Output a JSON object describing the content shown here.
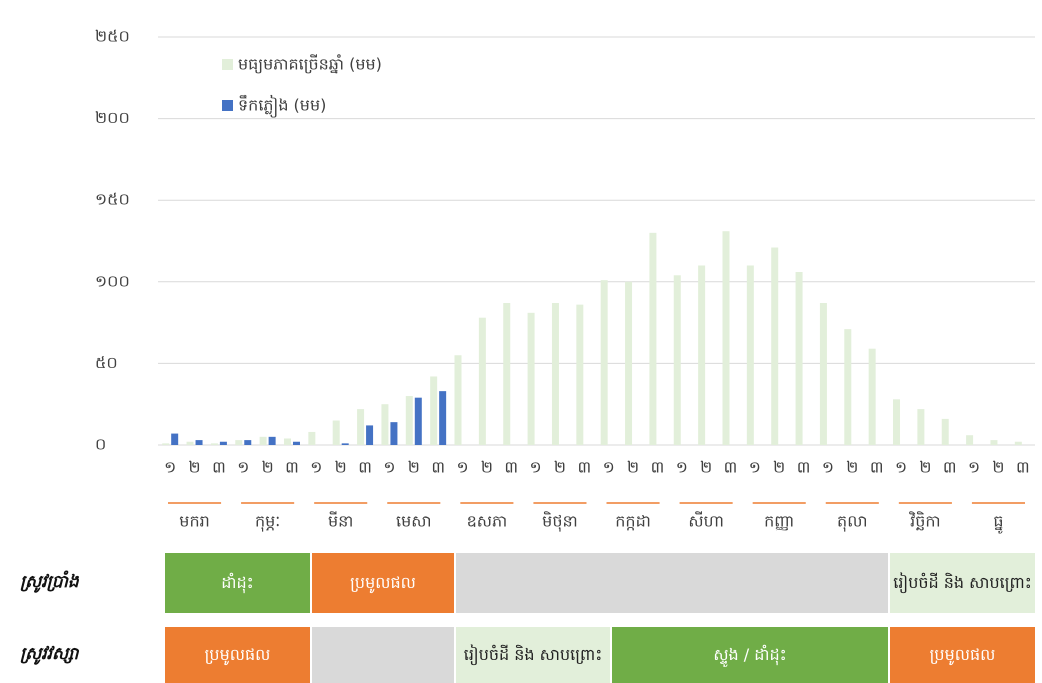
{
  "chart_data": {
    "type": "bar",
    "categories": [
      "១",
      "២",
      "៣",
      "១",
      "២",
      "៣",
      "១",
      "២",
      "៣",
      "១",
      "២",
      "៣",
      "១",
      "២",
      "៣",
      "១",
      "២",
      "៣",
      "១",
      "២",
      "៣",
      "១",
      "២",
      "៣",
      "១",
      "២",
      "៣",
      "១",
      "២",
      "៣",
      "១",
      "២",
      "៣",
      "១",
      "២",
      "៣"
    ],
    "months": [
      "មករា",
      "កុម្ភៈ",
      "មីនា",
      "មេសា",
      "ឧសភា",
      "មិថុនា",
      "កក្កដា",
      "សីហា",
      "កញ្ញា",
      "តុលា",
      "វិច្ឆិកា",
      "ធ្នូ"
    ],
    "series": [
      {
        "name": "មធ្យមភាគច្រើនឆ្នាំ (មម)",
        "color": "#e2efda",
        "values": [
          1,
          2,
          1,
          3,
          5,
          4,
          8,
          15,
          22,
          25,
          30,
          42,
          55,
          78,
          87,
          81,
          87,
          86,
          101,
          100,
          130,
          104,
          110,
          131,
          110,
          121,
          106,
          87,
          71,
          59,
          28,
          22,
          16,
          6,
          3,
          2
        ]
      },
      {
        "name": "ទឹកភ្លៀង (មម)",
        "color": "#4472c4",
        "values": [
          7,
          3,
          2,
          3,
          5,
          2,
          0,
          1,
          12,
          14,
          29,
          33,
          null,
          null,
          null,
          null,
          null,
          null,
          null,
          null,
          null,
          null,
          null,
          null,
          null,
          null,
          null,
          null,
          null,
          null,
          null,
          null,
          null,
          null,
          null,
          null
        ]
      }
    ],
    "ylim": [
      0,
      250
    ],
    "yticks": [
      {
        "value": 0,
        "label": "០"
      },
      {
        "value": 50,
        "label": "៥០"
      },
      {
        "value": 100,
        "label": "១០០"
      },
      {
        "value": 150,
        "label": "១៥០"
      },
      {
        "value": 200,
        "label": "២០០"
      },
      {
        "value": 250,
        "label": "២៥០"
      }
    ],
    "grid": true,
    "legend": "upper left"
  },
  "calendar": {
    "rows": [
      {
        "label": "ស្រូវប្រាំង",
        "cells": [
          "ដាំដុះ",
          "ប្រមូលផល",
          "រៀបចំដី និង សាបព្រោះ"
        ]
      },
      {
        "label": "ស្រូវវស្សា",
        "cells": [
          "ប្រមូលផល",
          "រៀបចំដី និង សាបព្រោះ",
          "ស្ទូង / ដាំដុះ",
          "ប្រមូលផល"
        ]
      }
    ]
  }
}
